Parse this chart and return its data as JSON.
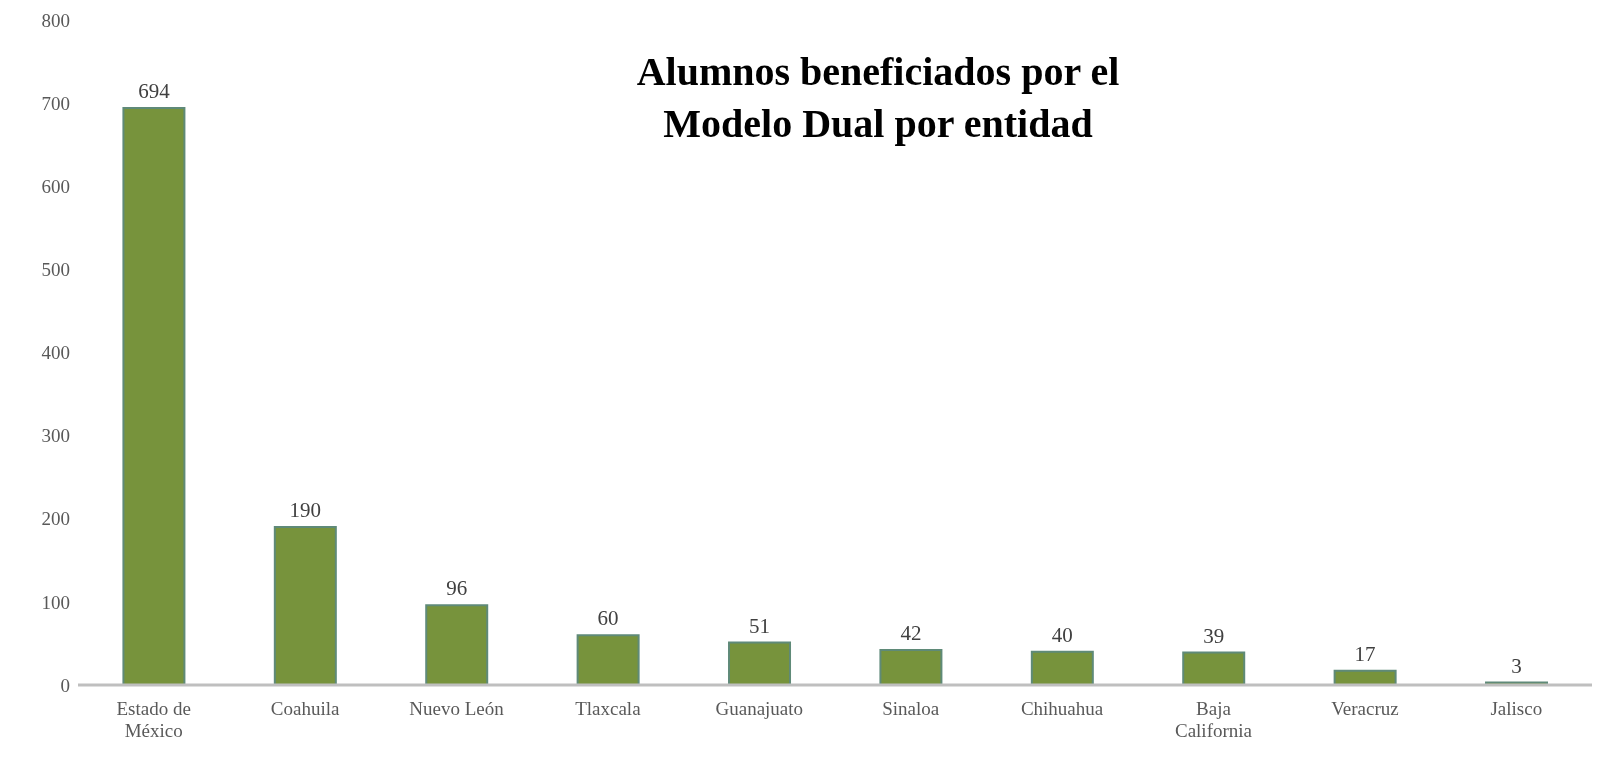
{
  "chart_data": {
    "type": "bar",
    "title": "Alumnos beneficiados por el\nModelo Dual por entidad",
    "categories": [
      "Estado de México",
      "Coahuila",
      "Nuevo León",
      "Tlaxcala",
      "Guanajuato",
      "Sinaloa",
      "Chihuahua",
      "Baja California",
      "Veracruz",
      "Jalisco"
    ],
    "values": [
      694,
      190,
      96,
      60,
      51,
      42,
      40,
      39,
      17,
      3
    ],
    "color": "#77933c",
    "ylim": [
      0,
      800
    ],
    "yticks": [
      0,
      100,
      200,
      300,
      400,
      500,
      600,
      700,
      800
    ],
    "data_labels": true,
    "grid": false,
    "legend": false
  }
}
